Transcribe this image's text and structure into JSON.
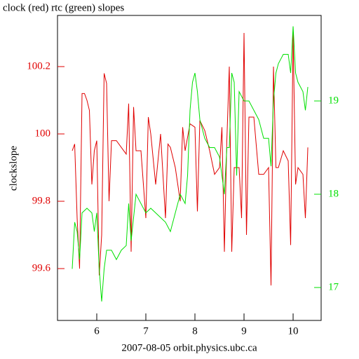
{
  "chart_data": {
    "type": "line",
    "title": "clock (red) rtc (green) slopes",
    "x_label": "2007-08-05 orbit.physics.ubc.ca",
    "y_label": "clockslope",
    "xlim": [
      5.2,
      10.571
    ],
    "xticks": [
      6,
      7,
      8,
      9,
      10
    ],
    "ylim": [
      99.446,
      100.352
    ],
    "yticks": [
      99.6,
      99.8,
      100,
      100.2
    ],
    "y2lim": [
      16.647,
      19.917
    ],
    "y2ticks": [
      17,
      18,
      19
    ],
    "series": [
      {
        "name": "clock",
        "color": "#e00000",
        "axis": "y",
        "x": [
          5.5,
          5.55,
          5.6,
          5.65,
          5.7,
          5.75,
          5.8,
          5.85,
          5.9,
          5.95,
          6.0,
          6.05,
          6.1,
          6.15,
          6.2,
          6.25,
          6.3,
          6.4,
          6.5,
          6.6,
          6.65,
          6.7,
          6.75,
          6.8,
          6.9,
          7.0,
          7.05,
          7.1,
          7.2,
          7.3,
          7.4,
          7.45,
          7.5,
          7.6,
          7.7,
          7.75,
          7.8,
          7.9,
          8.0,
          8.05,
          8.1,
          8.2,
          8.3,
          8.4,
          8.5,
          8.55,
          8.6,
          8.65,
          8.7,
          8.75,
          8.8,
          8.9,
          8.95,
          9.0,
          9.05,
          9.1,
          9.2,
          9.3,
          9.4,
          9.5,
          9.55,
          9.6,
          9.65,
          9.7,
          9.8,
          9.9,
          9.95,
          10.0,
          10.05,
          10.1,
          10.2,
          10.25,
          10.3
        ],
        "values": [
          99.95,
          99.97,
          99.75,
          99.6,
          100.12,
          100.12,
          100.1,
          100.07,
          99.85,
          99.95,
          99.98,
          99.58,
          99.7,
          100.18,
          100.15,
          99.8,
          99.98,
          99.98,
          99.96,
          99.94,
          100.09,
          99.65,
          100.08,
          99.95,
          99.95,
          99.75,
          100.05,
          100.0,
          99.85,
          100.0,
          99.75,
          99.97,
          99.96,
          99.9,
          99.8,
          100.02,
          99.95,
          100.03,
          100.02,
          99.77,
          100.04,
          100.01,
          99.95,
          99.88,
          99.9,
          100.02,
          99.65,
          99.98,
          100.2,
          99.65,
          99.9,
          99.9,
          99.75,
          100.3,
          99.7,
          100.05,
          100.05,
          99.88,
          99.88,
          99.9,
          99.55,
          100.2,
          99.9,
          99.9,
          99.95,
          99.92,
          99.67,
          100.3,
          99.85,
          99.9,
          99.88,
          99.75,
          99.96
        ]
      },
      {
        "name": "rtc",
        "color": "#00e000",
        "axis": "y2",
        "x": [
          5.5,
          5.55,
          5.6,
          5.65,
          5.7,
          5.8,
          5.9,
          5.95,
          6.0,
          6.05,
          6.1,
          6.15,
          6.2,
          6.3,
          6.4,
          6.5,
          6.6,
          6.65,
          6.7,
          6.8,
          6.9,
          7.0,
          7.1,
          7.2,
          7.3,
          7.4,
          7.5,
          7.6,
          7.7,
          7.8,
          7.85,
          7.9,
          7.95,
          8.0,
          8.05,
          8.1,
          8.2,
          8.3,
          8.4,
          8.5,
          8.6,
          8.65,
          8.7,
          8.75,
          8.8,
          8.85,
          8.9,
          9.0,
          9.1,
          9.2,
          9.3,
          9.4,
          9.5,
          9.55,
          9.6,
          9.65,
          9.7,
          9.8,
          9.9,
          9.95,
          10.0,
          10.05,
          10.1,
          10.2,
          10.25,
          10.3
        ],
        "values": [
          17.2,
          17.7,
          17.6,
          17.3,
          17.8,
          17.85,
          17.8,
          17.6,
          17.8,
          17.2,
          16.85,
          17.2,
          17.4,
          17.4,
          17.3,
          17.4,
          17.45,
          17.9,
          17.5,
          18.0,
          17.9,
          17.8,
          17.85,
          17.8,
          17.75,
          17.7,
          17.6,
          17.8,
          18.0,
          17.9,
          18.2,
          18.9,
          19.2,
          19.3,
          19.1,
          18.8,
          18.6,
          18.5,
          18.5,
          18.4,
          18.0,
          18.5,
          18.5,
          19.3,
          19.2,
          18.2,
          19.1,
          19.0,
          19.0,
          18.9,
          18.8,
          18.6,
          18.6,
          18.3,
          19.0,
          19.3,
          19.4,
          19.5,
          19.5,
          19.3,
          19.8,
          19.3,
          19.2,
          19.1,
          18.9,
          19.15
        ]
      }
    ]
  }
}
